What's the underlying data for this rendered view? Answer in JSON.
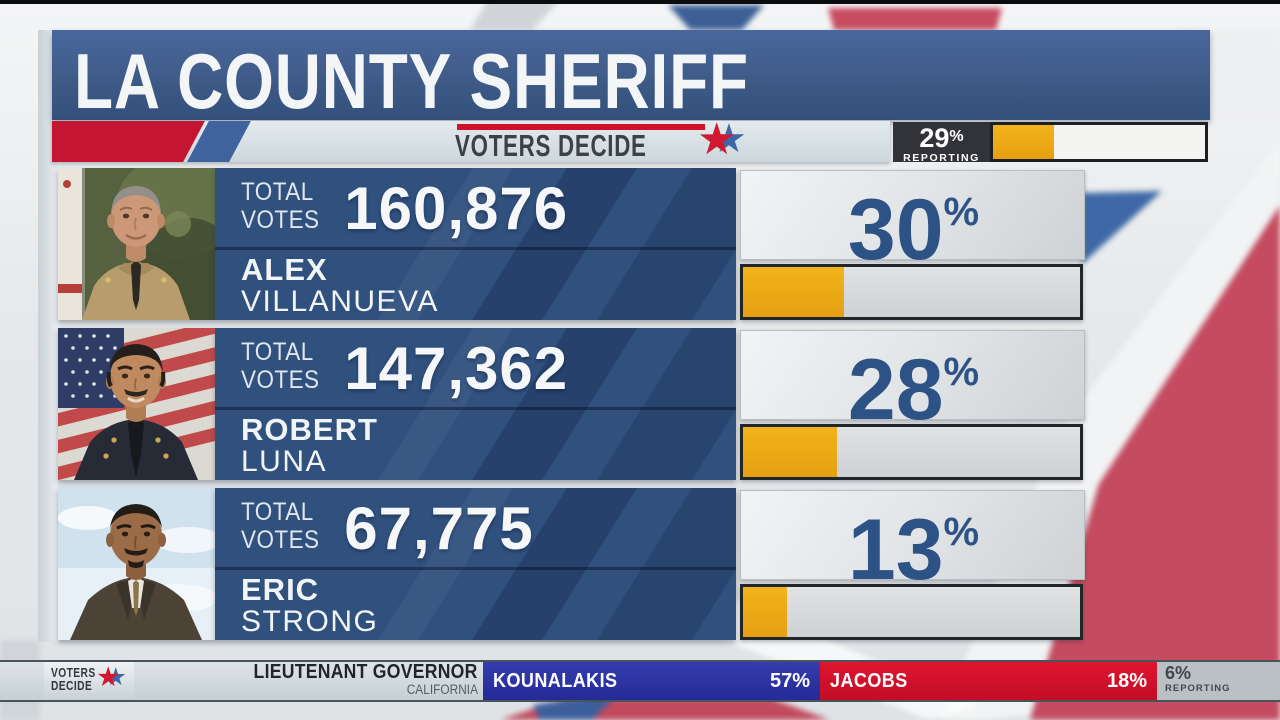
{
  "header": {
    "title": "LA COUNTY SHERIFF"
  },
  "banner": {
    "label": "VOTERS DECIDE"
  },
  "reporting": {
    "percent": "29",
    "sign": "%",
    "label": "REPORTING",
    "value": 29
  },
  "votes_label": {
    "line1": "TOTAL",
    "line2": "VOTES"
  },
  "percent_sign": "%",
  "candidates": [
    {
      "first": "ALEX",
      "last": "VILLANUEVA",
      "votes": "160,876",
      "percent": "30",
      "value": 30
    },
    {
      "first": "ROBERT",
      "last": "LUNA",
      "votes": "147,362",
      "percent": "28",
      "value": 28
    },
    {
      "first": "ERIC",
      "last": "STRONG",
      "votes": "67,775",
      "percent": "13",
      "value": 13
    }
  ],
  "ticker": {
    "logo_line1": "VOTERS",
    "logo_line2": "DECIDE",
    "race_title": "LIEUTENANT GOVERNOR",
    "race_subtitle": "CALIFORNIA",
    "results": [
      {
        "name": "KOUNALAKIS",
        "percent": "57%"
      },
      {
        "name": "JACOBS",
        "percent": "18%"
      }
    ],
    "reporting_percent": "6%",
    "reporting_label": "REPORTING"
  },
  "colors": {
    "header_blue": "#3e5b88",
    "panel_blue": "#30507e",
    "accent_gold": "#eba813",
    "percent_blue": "#2d5285",
    "strip_red": "#c41632",
    "strip_blue": "#40639e",
    "ticker_blue": "#2b31a4",
    "ticker_red": "#d6102c",
    "reporting_box": "#323338"
  },
  "chart_data": {
    "type": "bar",
    "title": "LA COUNTY SHERIFF",
    "categories": [
      "ALEX VILLANUEVA",
      "ROBERT LUNA",
      "ERIC STRONG"
    ],
    "series": [
      {
        "name": "TOTAL VOTES",
        "values": [
          160876,
          147362,
          67775
        ]
      },
      {
        "name": "PERCENT",
        "values": [
          30,
          28,
          13
        ]
      }
    ],
    "percent_axis_range": [
      0,
      100
    ],
    "reporting_percent": 29,
    "secondary_race": {
      "title": "LIEUTENANT GOVERNOR",
      "subtitle": "CALIFORNIA",
      "categories": [
        "KOUNALAKIS",
        "JACOBS"
      ],
      "values": [
        57,
        18
      ],
      "reporting_percent": 6
    }
  }
}
